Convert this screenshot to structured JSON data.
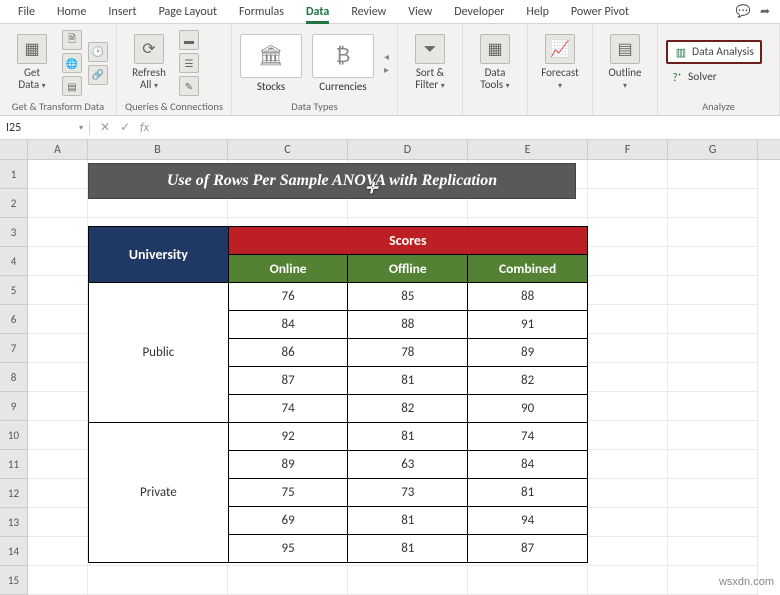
{
  "tabs": [
    "File",
    "Home",
    "Insert",
    "Page Layout",
    "Formulas",
    "Data",
    "Review",
    "View",
    "Developer",
    "Help",
    "Power Pivot"
  ],
  "active_tab": "Data",
  "ribbon": {
    "get_data": {
      "btn": "Get\nData",
      "grp": "Get & Transform Data"
    },
    "refresh": {
      "btn": "Refresh\nAll",
      "grp": "Queries & Connections"
    },
    "data_types": {
      "stocks": "Stocks",
      "curr": "Currencies",
      "grp": "Data Types"
    },
    "sort": {
      "btn": "Sort &\nFilter"
    },
    "tools": {
      "btn": "Data\nTools"
    },
    "fcst": {
      "btn": "Forecast"
    },
    "outline": {
      "btn": "Outline"
    },
    "analyze": {
      "da": "Data Analysis",
      "solver": "Solver",
      "grp": "Analyze"
    }
  },
  "name_box": "I25",
  "cols": [
    "A",
    "B",
    "C",
    "D",
    "E",
    "F",
    "G"
  ],
  "rows": [
    "1",
    "2",
    "3",
    "4",
    "5",
    "6",
    "7",
    "8",
    "9",
    "10",
    "11",
    "12",
    "13",
    "14",
    "15"
  ],
  "title": "Use of Rows Per Sample ANOVA with Replication",
  "table": {
    "hd_univ": "University",
    "hd_scores": "Scores",
    "subs": [
      "Online",
      "Offline",
      "Combined"
    ],
    "groups": [
      {
        "name": "Public",
        "rows": [
          [
            76,
            85,
            88
          ],
          [
            84,
            88,
            91
          ],
          [
            86,
            78,
            89
          ],
          [
            87,
            81,
            82
          ],
          [
            74,
            82,
            90
          ]
        ]
      },
      {
        "name": "Private",
        "rows": [
          [
            92,
            81,
            74
          ],
          [
            89,
            63,
            84
          ],
          [
            75,
            73,
            81
          ],
          [
            69,
            81,
            94
          ],
          [
            95,
            81,
            87
          ]
        ]
      }
    ],
    "colors": {
      "univ": "#203864",
      "scores": "#bd2024",
      "sub": "#548235",
      "title_bg": "#595959"
    }
  },
  "watermark": "wsxdn.com"
}
